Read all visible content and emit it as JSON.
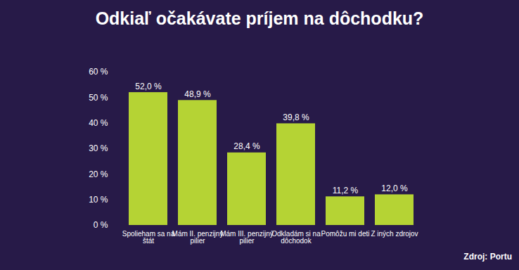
{
  "chart_data": {
    "type": "bar",
    "title": "Odkiaľ očakávate príjem na dôchodku?",
    "source": "Zdroj: Portu",
    "categories": [
      "Spolieham sa na štát",
      "Mám II. penzijný pilier",
      "Mám III. penzijný pilier",
      "Odkladám si na dôchodok",
      "Pomôžu mi deti",
      "Z iných zdrojov"
    ],
    "values": [
      52.0,
      48.9,
      28.4,
      39.8,
      11.2,
      12.0
    ],
    "value_labels": [
      "52,0 %",
      "48,9 %",
      "28,4 %",
      "39,8 %",
      "11,2 %",
      "12,0 %"
    ],
    "data_labels": true,
    "color": "#b5d334",
    "ylim": [
      0,
      60
    ],
    "yticks": [
      {
        "value": 0,
        "label": "0 %"
      },
      {
        "value": 10,
        "label": "10 %"
      },
      {
        "value": 20,
        "label": "20 %"
      },
      {
        "value": 30,
        "label": "30 %"
      },
      {
        "value": 40,
        "label": "40 %"
      },
      {
        "value": 50,
        "label": "50 %"
      },
      {
        "value": 60,
        "label": "60 %"
      }
    ],
    "grid": false
  }
}
